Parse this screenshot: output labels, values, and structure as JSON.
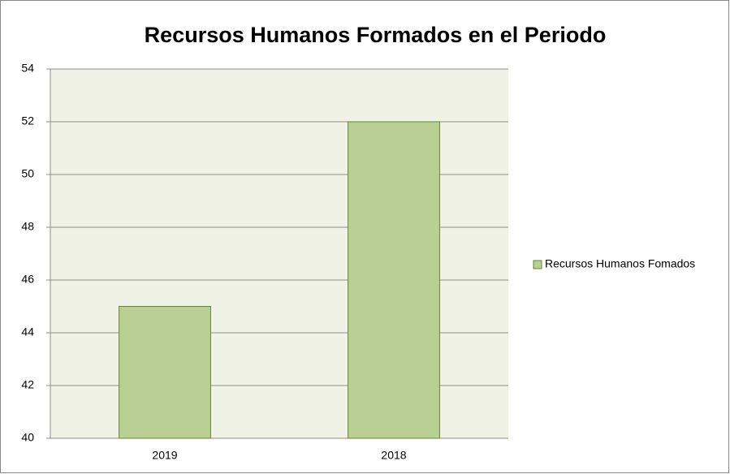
{
  "chart_data": {
    "type": "bar",
    "title": "Recursos Humanos Formados en el Periodo",
    "categories": [
      "2019",
      "2018"
    ],
    "series": [
      {
        "name": "Recursos Humanos Fomados",
        "color": "#b9cf94",
        "values": [
          45,
          52
        ]
      }
    ],
    "ylim": [
      40,
      54
    ],
    "yticks": [
      40,
      42,
      44,
      46,
      48,
      50,
      52,
      54
    ],
    "grid": true,
    "legend": "right"
  }
}
